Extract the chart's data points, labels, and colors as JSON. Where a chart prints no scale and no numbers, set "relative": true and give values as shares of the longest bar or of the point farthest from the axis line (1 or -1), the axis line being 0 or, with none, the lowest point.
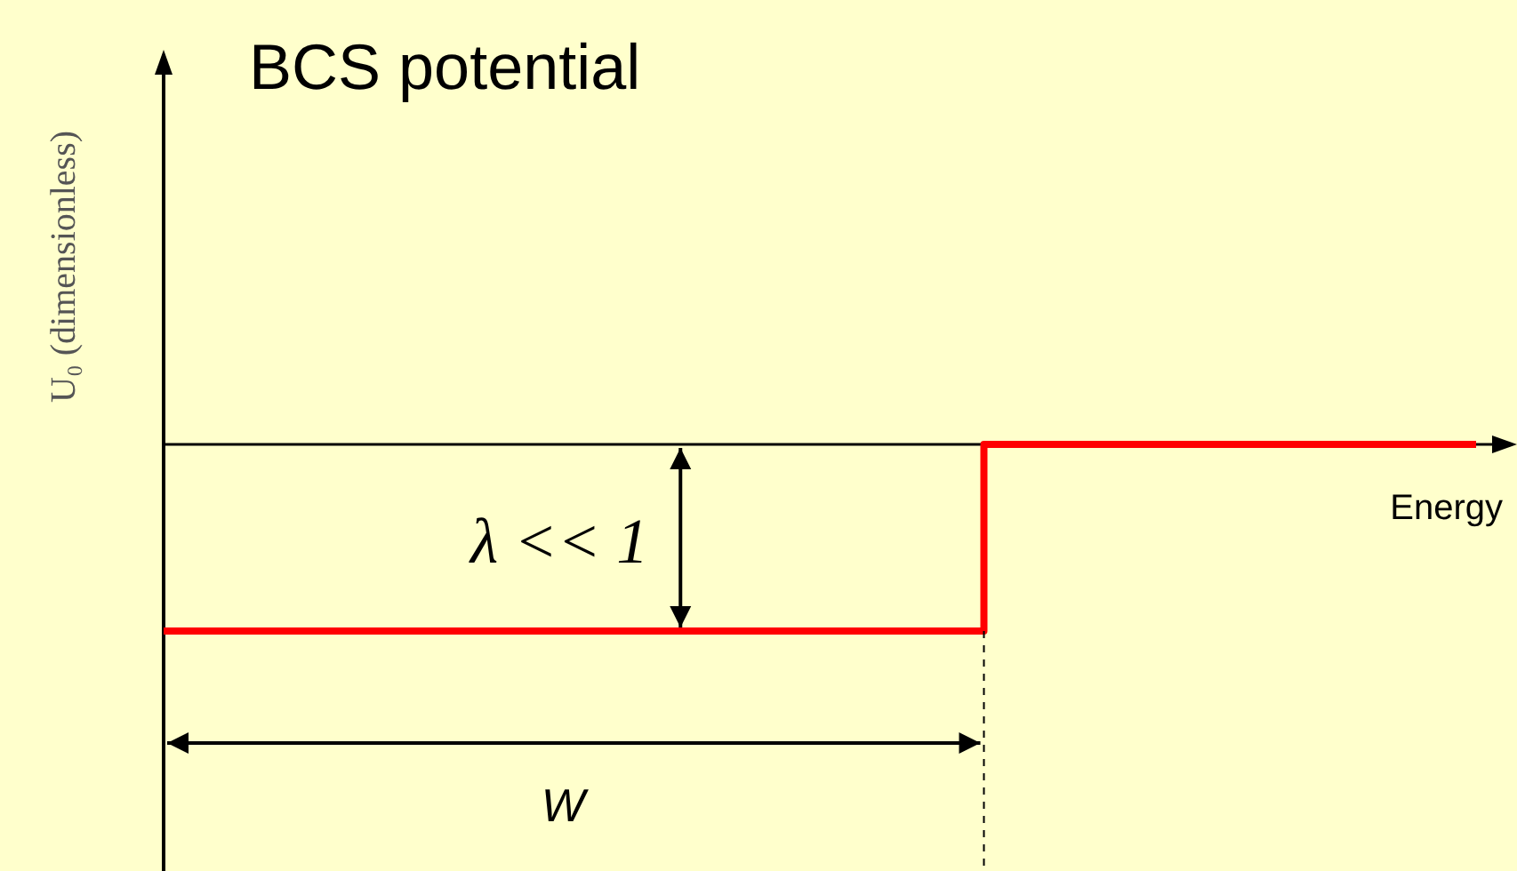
{
  "chart_data": {
    "type": "step",
    "title": "BCS potential",
    "xlabel": "Energy",
    "ylabel": "U₀ (dimensionless)",
    "relative": true,
    "categories": [
      null,
      null,
      null,
      null,
      null,
      null,
      null,
      null,
      null
    ],
    "series": [
      {
        "color": "#ff0000",
        "values": [
          -1,
          -1,
          -1,
          -1,
          -1,
          0,
          0,
          0,
          0
        ]
      }
    ],
    "annotations": [
      "λ << 1",
      "W"
    ]
  }
}
